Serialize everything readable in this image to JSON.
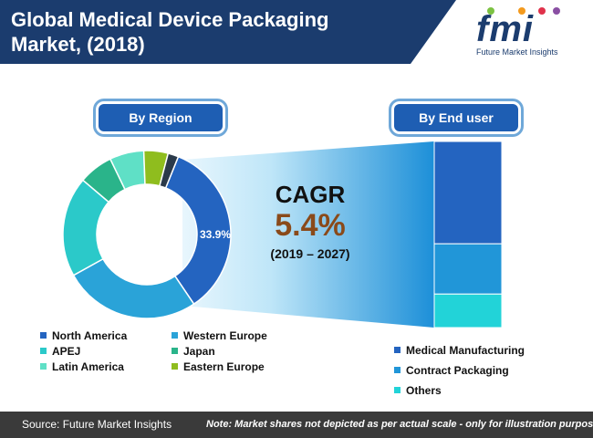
{
  "header": {
    "title_line1": "Global Medical Device Packaging",
    "title_line2": "Market, (2018)"
  },
  "logo": {
    "text": "fmi",
    "subtitle": "Future Market Insights"
  },
  "region_label": "By Region",
  "end_user_label": "By End user",
  "cagr": {
    "title": "CAGR",
    "value": "5.4%",
    "period": "(2019 – 2027)"
  },
  "colors": {
    "title_band": "#1b3c6e",
    "pill": "#1e5eb3",
    "cagr_value": "#8a4a1a",
    "footer": "#3a3a3a"
  },
  "chart_data": [
    {
      "type": "pie",
      "variant": "donut",
      "title": "By Region",
      "slices": [
        {
          "name": "North America",
          "value": 33.9,
          "label": "33.9%",
          "color": "#2464c0"
        },
        {
          "name": "Western Europe",
          "value": 26.0,
          "color": "#2aa3d8"
        },
        {
          "name": "APEJ",
          "value": 19.0,
          "color": "#2bc9c9"
        },
        {
          "name": "Japan",
          "value": 6.5,
          "color": "#2ab48a"
        },
        {
          "name": "Latin America",
          "value": 6.5,
          "color": "#5fe0c6"
        },
        {
          "name": "Eastern Europe",
          "value": 4.6,
          "color": "#8fbd1e"
        },
        {
          "name": "",
          "value": 2.0,
          "color": "#2b3a4a"
        }
      ],
      "legend_position": "bottom"
    },
    {
      "type": "bar",
      "variant": "stacked-100",
      "title": "By End user",
      "series": [
        {
          "name": "Medical Manufacturing",
          "value": 55,
          "color": "#2464c0"
        },
        {
          "name": "Contract Packaging",
          "value": 27,
          "color": "#2196d8"
        },
        {
          "name": "Others",
          "value": 18,
          "color": "#22d3d8"
        }
      ],
      "legend_position": "bottom"
    }
  ],
  "footer": {
    "source": "Source: Future Market Insights",
    "note": "Note: Market shares not depicted as per actual scale - only for illustration purposes"
  }
}
